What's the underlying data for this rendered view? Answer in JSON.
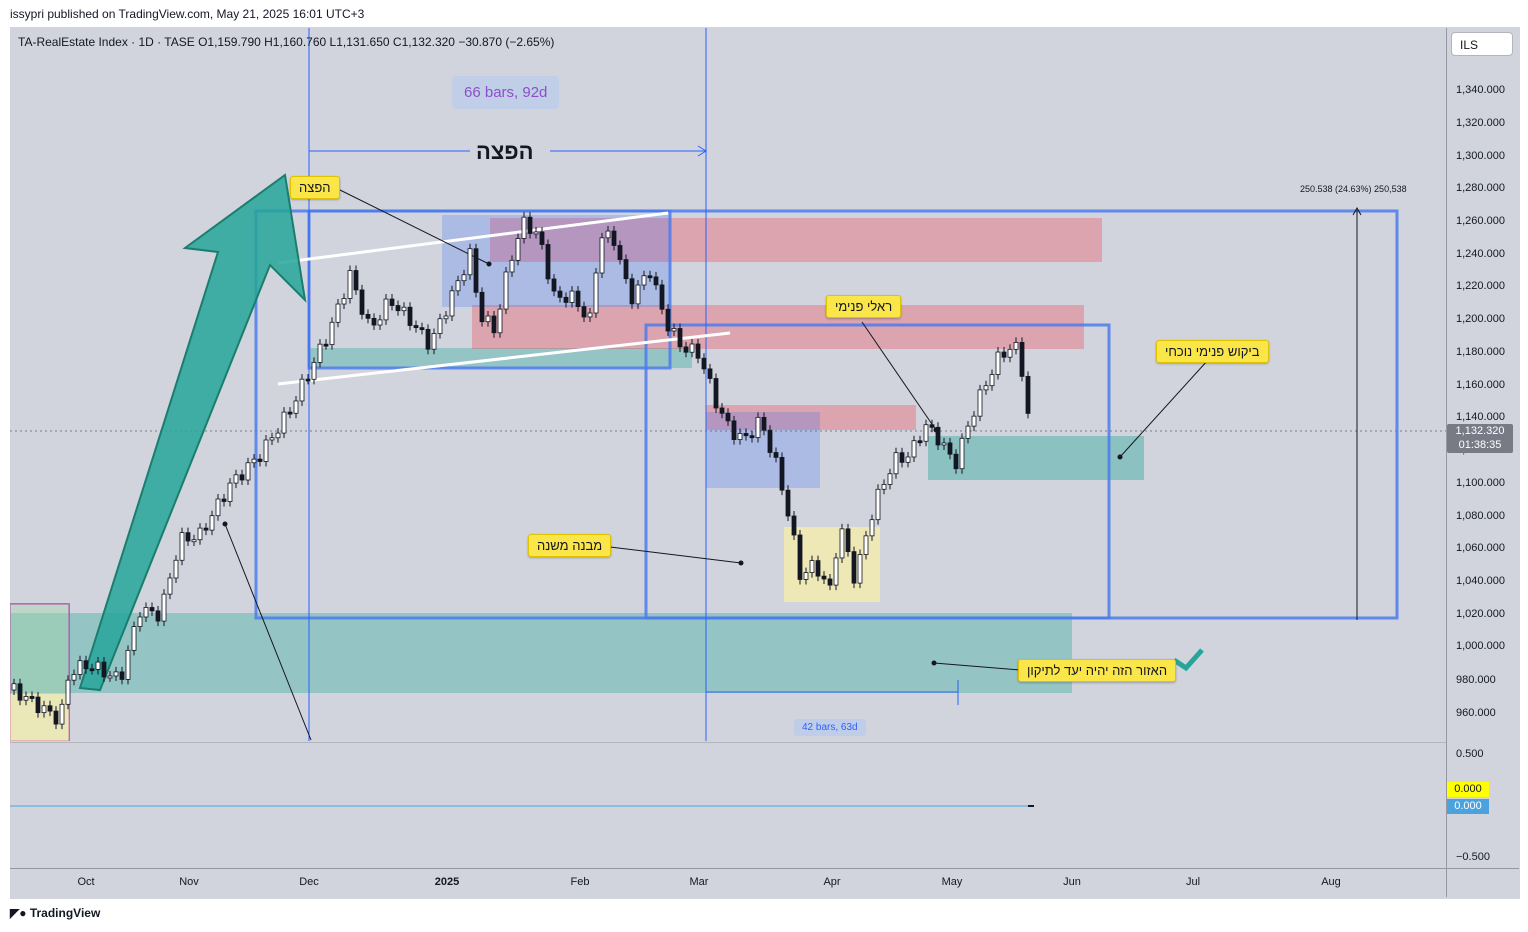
{
  "credit": "issypri published on TradingView.com, May 21, 2025 16:01 UTC+3",
  "legend": {
    "symbol": "TA-RealEstate Index · 1D · TASE",
    "ohlc": "O1,159.790  H1,160.760  L1,131.650  C1,132.320",
    "change": "−30.870 (−2.65%)"
  },
  "currency_button": "ILS",
  "price_axis": [
    "1,340.000",
    "1,320.000",
    "1,300.000",
    "1,280.000",
    "1,260.000",
    "1,240.000",
    "1,220.000",
    "1,200.000",
    "1,180.000",
    "1,160.000",
    "1,140.000",
    "1,120.000",
    "1,100.000",
    "1,080.000",
    "1,060.000",
    "1,040.000",
    "1,020.000",
    "1,000.000",
    "980.000",
    "960.000"
  ],
  "osc_axis": [
    "0.500",
    "−0.500"
  ],
  "current_price": "1,132.320",
  "countdown": "01:38:35",
  "osc_values": [
    "0.000",
    "0.000"
  ],
  "time_axis": [
    "Oct",
    "Nov",
    "Dec",
    "2025",
    "Feb",
    "Mar",
    "Apr",
    "May",
    "Jun",
    "Jul",
    "Aug"
  ],
  "annotations": {
    "bars_top": "66 bars, 92d",
    "bars_bottom": "42 bars, 63d",
    "title_distribution": "הפצה",
    "callout_distribution": "הפצה",
    "callout_internal_rally": "ראלי פנימי",
    "callout_current_demand": "ביקוש פנימי נוכחי",
    "callout_secondary_structure": "מבנה משנה",
    "callout_target_zone": "האזור הזה יהיה יעד לתיקון",
    "measure": "250.538 (24.63%) 250,538"
  },
  "footer": "TradingView",
  "colors": {
    "background": "#d1d4dc",
    "bull_candle": "#ffffff",
    "bear_candle": "#131722",
    "teal_zone": "#26a69a",
    "red_zone": "#f23645",
    "blue_zone": "#2962ff",
    "callout": "#fbe64a"
  }
}
